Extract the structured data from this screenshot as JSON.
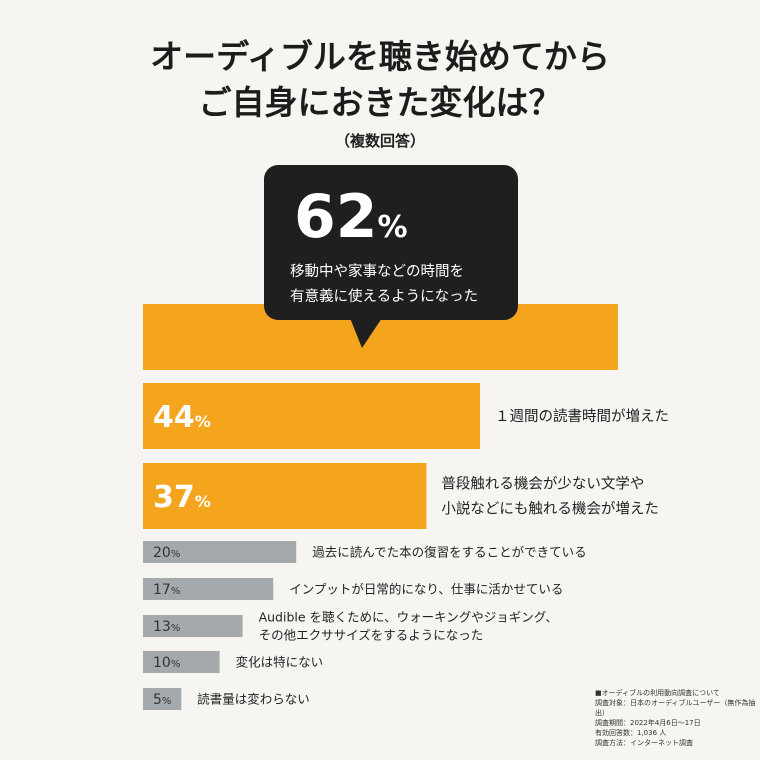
{
  "header": {
    "title_line1": "オーディブルを聴き始めてから",
    "title_line2": "ご自身におきた変化は？",
    "subtitle": "（複数回答）"
  },
  "callout": {
    "value": "62",
    "unit": "%",
    "line1": "移動中や家事などの時間を",
    "line2": "有意義に使えるようになった"
  },
  "colors": {
    "highlight": "#f5a41e",
    "muted": "#a5a9ac",
    "callout": "#1f1f1f"
  },
  "chart_data": {
    "type": "bar",
    "orientation": "horizontal",
    "unit": "%",
    "categories": [
      [
        "移動中や家事などの時間を",
        "有意義に使えるようになった"
      ],
      [
        "１週間の読書時間が増えた"
      ],
      [
        "普段触れる機会が少ない文学や",
        "小説などにも触れる機会が増えた"
      ],
      [
        "過去に読んでた本の復習をすることができている"
      ],
      [
        "インプットが日常的になり、仕事に活かせている"
      ],
      [
        "Audible を聴くために、ウォーキングやジョギング、",
        "その他エクササイズをするようになった"
      ],
      [
        "変化は特にない"
      ],
      [
        "読書量は変わらない"
      ]
    ],
    "values": [
      62,
      44,
      37,
      20,
      17,
      13,
      10,
      5
    ],
    "highlighted": [
      true,
      true,
      true,
      false,
      false,
      false,
      false,
      false
    ]
  },
  "footnote": {
    "lines": [
      "■オーディブルの利用動向調査について",
      "調査対象：日本のオーディブルユーザー（無作為抽出）",
      "調査期間：2022年4月6日～17日",
      "有効回答数：1,036 人",
      "調査方法：インターネット調査"
    ]
  }
}
